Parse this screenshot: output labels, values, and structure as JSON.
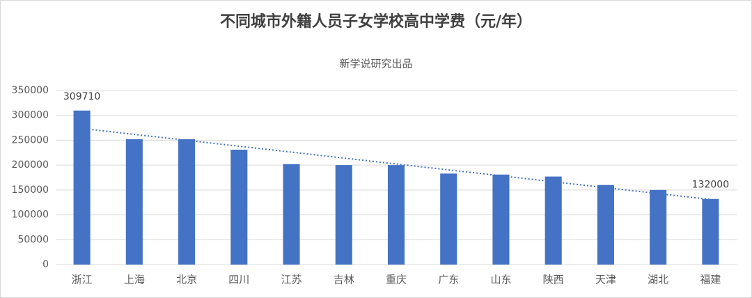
{
  "chart_data": {
    "type": "bar",
    "title": "不同城市外籍人员子女学校高中学费（元/年）",
    "subtitle": "新学说研究出品",
    "categories": [
      "浙江",
      "上海",
      "北京",
      "四川",
      "江苏",
      "吉林",
      "重庆",
      "广东",
      "山东",
      "陕西",
      "天津",
      "湖北",
      "福建"
    ],
    "values": [
      309710,
      252000,
      252000,
      231000,
      202000,
      200000,
      200000,
      183000,
      181000,
      177000,
      160000,
      150000,
      132000
    ],
    "value_labels": [
      "309710",
      null,
      null,
      null,
      null,
      null,
      null,
      null,
      null,
      null,
      null,
      null,
      "132000"
    ],
    "color": "#4472c4",
    "trendline": "linear",
    "ylim": [
      0,
      350000
    ],
    "yticks": [
      0,
      50000,
      100000,
      150000,
      200000,
      250000,
      300000,
      350000
    ],
    "grid": true
  }
}
